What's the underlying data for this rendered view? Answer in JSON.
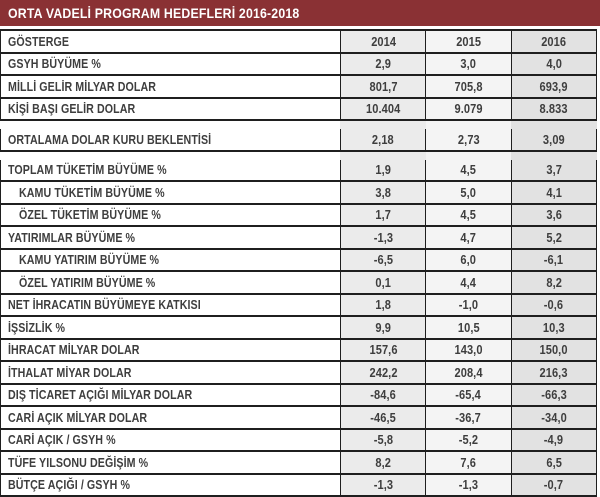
{
  "title": "ORTA VADELİ PROGRAM HEDEFLERİ 2016-2018",
  "colors": {
    "header_bg": "#8a3134",
    "border": "#1f1f1f",
    "text": "#3e3e3e",
    "title_text": "#ffffff",
    "col_2014_bg": "#ebebeb",
    "col_2015_bg": "#f4f4f4",
    "col_2016_bg": "#e2e2e2"
  },
  "table": {
    "header": {
      "label": "GÖSTERGE",
      "years": [
        "2014",
        "2015",
        "2016"
      ]
    },
    "rows": [
      {
        "label": "GSYH BÜYÜME %",
        "values": [
          "2,9",
          "3,0",
          "4,0"
        ],
        "indent": false
      },
      {
        "label": "MİLLİ GELİR MİLYAR DOLAR",
        "values": [
          "801,7",
          "705,8",
          "693,9"
        ],
        "indent": false
      },
      {
        "label": "KİŞİ BAŞI GELİR DOLAR",
        "values": [
          "10.404",
          "9.079",
          "8.833"
        ],
        "indent": false
      },
      {
        "type": "separator"
      },
      {
        "label": "ORTALAMA DOLAR KURU BEKLENTİSİ",
        "values": [
          "2,18",
          "2,73",
          "3,09"
        ],
        "indent": false
      },
      {
        "type": "separator"
      },
      {
        "label": "TOPLAM TÜKETİM BÜYÜME %",
        "values": [
          "1,9",
          "4,5",
          "3,7"
        ],
        "indent": false
      },
      {
        "label": "KAMU TÜKETİM BÜYÜME %",
        "values": [
          "3,8",
          "5,0",
          "4,1"
        ],
        "indent": true
      },
      {
        "label": "ÖZEL TÜKETİM BÜYÜME %",
        "values": [
          "1,7",
          "4,5",
          "3,6"
        ],
        "indent": true
      },
      {
        "label": "YATIRIMLAR BÜYÜME %",
        "values": [
          "-1,3",
          "4,7",
          "5,2"
        ],
        "indent": false
      },
      {
        "label": "KAMU YATIRIM BÜYÜME %",
        "values": [
          "-6,5",
          "6,0",
          "-6,1"
        ],
        "indent": true
      },
      {
        "label": "ÖZEL YATIRIM BÜYÜME %",
        "values": [
          "0,1",
          "4,4",
          "8,2"
        ],
        "indent": true
      },
      {
        "label": "NET İHRACATIN BÜYÜMEYE KATKISI",
        "values": [
          "1,8",
          "-1,0",
          "-0,6"
        ],
        "indent": false
      },
      {
        "label": "İŞSİZLİK %",
        "values": [
          "9,9",
          "10,5",
          "10,3"
        ],
        "indent": false
      },
      {
        "label": "İHRACAT MİLYAR DOLAR",
        "values": [
          "157,6",
          "143,0",
          "150,0"
        ],
        "indent": false
      },
      {
        "label": "İTHALAT MİYAR DOLAR",
        "values": [
          "242,2",
          "208,4",
          "216,3"
        ],
        "indent": false
      },
      {
        "label": "DIŞ TİCARET AÇIĞI MİLYAR DOLAR",
        "values": [
          "-84,6",
          "-65,4",
          "-66,3"
        ],
        "indent": false
      },
      {
        "label": "CARİ AÇIK MİLYAR DOLAR",
        "values": [
          "-46,5",
          "-36,7",
          "-34,0"
        ],
        "indent": false
      },
      {
        "label": "CARİ AÇIK / GSYH %",
        "values": [
          "-5,8",
          "-5,2",
          "-4,9"
        ],
        "indent": false
      },
      {
        "label": "TÜFE YILSONU DEĞİŞİM %",
        "values": [
          "8,2",
          "7,6",
          "6,5"
        ],
        "indent": false
      },
      {
        "label": "BÜTÇE AÇIĞI / GSYH %",
        "values": [
          "-1,3",
          "-1,3",
          "-0,7"
        ],
        "indent": false
      }
    ]
  },
  "chart_data": {
    "type": "table",
    "title": "ORTA VADELİ PROGRAM HEDEFLERİ 2016-2018",
    "columns": [
      "GÖSTERGE",
      "2014",
      "2015",
      "2016"
    ],
    "rows": [
      [
        "GSYH BÜYÜME %",
        2.9,
        3.0,
        4.0
      ],
      [
        "MİLLİ GELİR MİLYAR DOLAR",
        801.7,
        705.8,
        693.9
      ],
      [
        "KİŞİ BAŞI GELİR DOLAR",
        10404,
        9079,
        8833
      ],
      [
        "ORTALAMA DOLAR KURU BEKLENTİSİ",
        2.18,
        2.73,
        3.09
      ],
      [
        "TOPLAM TÜKETİM BÜYÜME %",
        1.9,
        4.5,
        3.7
      ],
      [
        "KAMU TÜKETİM BÜYÜME %",
        3.8,
        5.0,
        4.1
      ],
      [
        "ÖZEL TÜKETİM BÜYÜME %",
        1.7,
        4.5,
        3.6
      ],
      [
        "YATIRIMLAR BÜYÜME %",
        -1.3,
        4.7,
        5.2
      ],
      [
        "KAMU YATIRIM BÜYÜME %",
        -6.5,
        6.0,
        -6.1
      ],
      [
        "ÖZEL YATIRIM BÜYÜME %",
        0.1,
        4.4,
        8.2
      ],
      [
        "NET İHRACATIN BÜYÜMEYE KATKISI",
        1.8,
        -1.0,
        -0.6
      ],
      [
        "İŞSİZLİK %",
        9.9,
        10.5,
        10.3
      ],
      [
        "İHRACAT MİLYAR DOLAR",
        157.6,
        143.0,
        150.0
      ],
      [
        "İTHALAT MİYAR DOLAR",
        242.2,
        208.4,
        216.3
      ],
      [
        "DIŞ TİCARET AÇIĞI MİLYAR DOLAR",
        -84.6,
        -65.4,
        -66.3
      ],
      [
        "CARİ AÇIK MİLYAR DOLAR",
        -46.5,
        -36.7,
        -34.0
      ],
      [
        "CARİ AÇIK / GSYH %",
        -5.8,
        -5.2,
        -4.9
      ],
      [
        "TÜFE YILSONU DEĞİŞİM %",
        8.2,
        7.6,
        6.5
      ],
      [
        "BÜTÇE AÇIĞI / GSYH %",
        -1.3,
        -1.3,
        -0.7
      ]
    ]
  }
}
